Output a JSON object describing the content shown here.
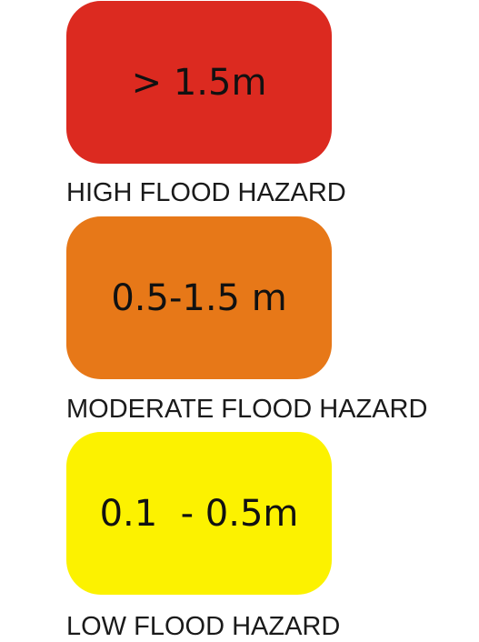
{
  "legend": {
    "items": [
      {
        "value": "> 1.5m",
        "label": "HIGH FLOOD HAZARD",
        "color": "#dc2a20"
      },
      {
        "value": "0.5-1.5 m",
        "label": "MODERATE FLOOD HAZARD",
        "color": "#e77818"
      },
      {
        "value": "0.1  - 0.5m",
        "label": "LOW FLOOD HAZARD",
        "color": "#fcf200"
      }
    ]
  }
}
